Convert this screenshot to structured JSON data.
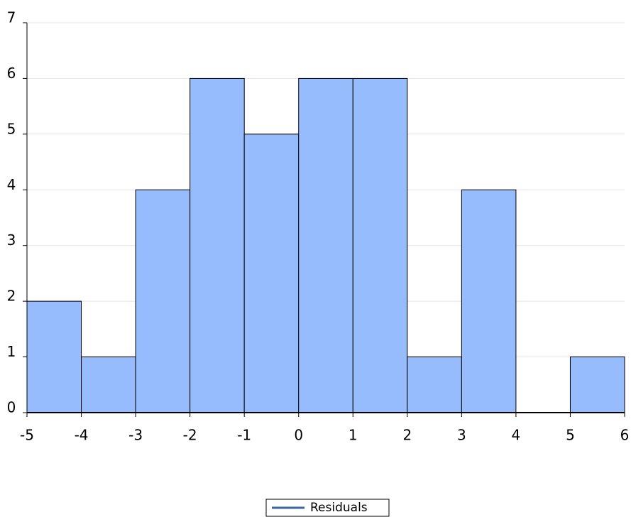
{
  "chart_data": {
    "type": "histogram",
    "bins": [
      -5,
      -4,
      -3,
      -2,
      -1,
      0,
      1,
      2,
      3,
      4,
      5,
      6
    ],
    "values": [
      2,
      1,
      4,
      6,
      5,
      6,
      6,
      1,
      4,
      0,
      1
    ],
    "color": "#97bcfd",
    "xlim": [
      -5,
      6
    ],
    "xticks": [
      -5,
      -4,
      -3,
      -2,
      -1,
      0,
      1,
      2,
      3,
      4,
      5,
      6
    ],
    "ylim": [
      0,
      7
    ],
    "yticks": [
      0,
      1,
      2,
      3,
      4,
      5,
      6,
      7
    ],
    "grid": true,
    "legend": {
      "label": "Residuals",
      "color": "#3a64a6",
      "position": "bottom"
    }
  }
}
